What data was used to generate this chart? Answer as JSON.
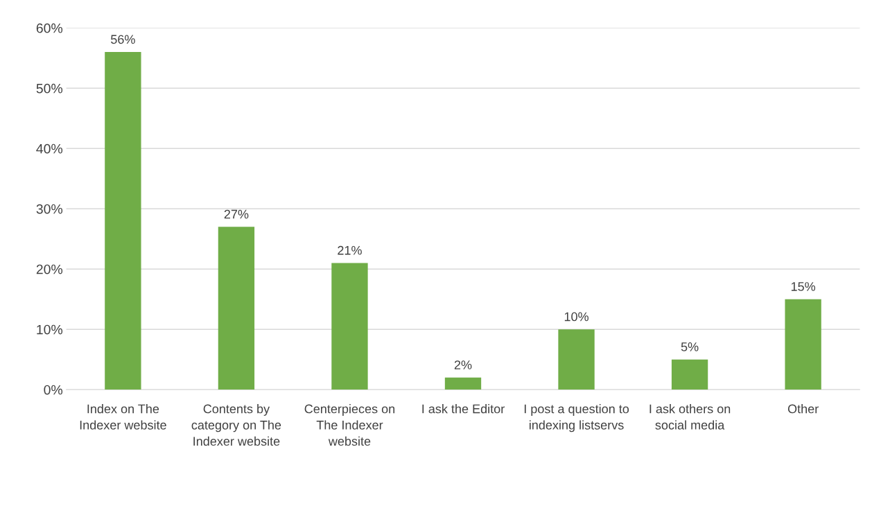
{
  "chart_data": {
    "type": "bar",
    "categories": [
      "Index on The Indexer website",
      "Contents by category on The Indexer website",
      "Centerpieces on The Indexer website",
      "I ask the Editor",
      "I post a question to indexing listservs",
      "I ask others on social media",
      "Other"
    ],
    "values": [
      56,
      27,
      21,
      2,
      10,
      5,
      15
    ],
    "value_labels": [
      "56%",
      "27%",
      "21%",
      "2%",
      "10%",
      "5%",
      "15%"
    ],
    "color": "#70ad47",
    "ylim": [
      0,
      60
    ],
    "yticks": [
      {
        "value": 0,
        "label": "0%"
      },
      {
        "value": 10,
        "label": "10%"
      },
      {
        "value": 20,
        "label": "20%"
      },
      {
        "value": 30,
        "label": "30%"
      },
      {
        "value": 40,
        "label": "40%"
      },
      {
        "value": 50,
        "label": "50%"
      },
      {
        "value": 60,
        "label": "60%"
      }
    ],
    "grid": "y",
    "legend": false
  }
}
